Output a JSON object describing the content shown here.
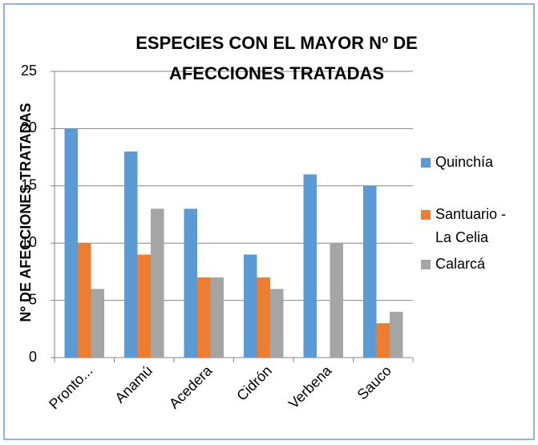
{
  "chart_data": {
    "type": "bar",
    "title": [
      "ESPECIES CON EL MAYOR Nº DE",
      "AFECCIONES TRATADAS"
    ],
    "y_label": "Nº DE AFECCIONES TRATADAS",
    "categories": [
      "Pronto...",
      "Anamú",
      "Acedera",
      "Cidrón",
      "Verbena",
      "Sauco"
    ],
    "series": [
      {
        "name": "Quinchía",
        "color": "#5b9bd5",
        "values": [
          20,
          18,
          13,
          9,
          16,
          15
        ]
      },
      {
        "name": "Santuario - La Celia",
        "color": "#ed7d31",
        "values": [
          10,
          9,
          7,
          7,
          0,
          3
        ]
      },
      {
        "name": "Calarcá",
        "color": "#a5a5a5",
        "values": [
          6,
          13,
          7,
          6,
          10,
          4
        ]
      }
    ],
    "ylim": [
      0,
      25
    ],
    "yticks": [
      0,
      5,
      10,
      15,
      20,
      25
    ],
    "grid": true,
    "legend": "right"
  }
}
